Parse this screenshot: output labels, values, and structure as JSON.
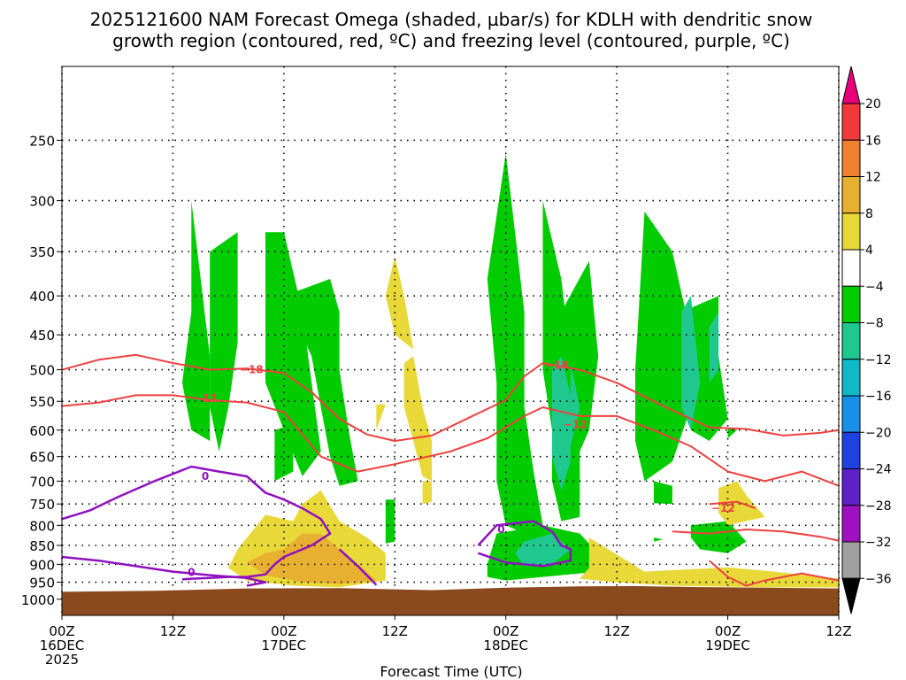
{
  "chart_data": {
    "type": "time-height-cross-section",
    "title_lines": [
      "2025121600 NAM Forecast Omega (shaded, µbar/s) for KDLH with dendritic snow",
      "growth region (contoured, red, ºC) and freezing level (contoured, purple, ºC)"
    ],
    "xlabel": "Forecast Time (UTC)",
    "x_ticks": [
      {
        "hour": 0,
        "lines": [
          "00Z",
          "16DEC",
          "2025"
        ]
      },
      {
        "hour": 12,
        "lines": [
          "12Z"
        ]
      },
      {
        "hour": 24,
        "lines": [
          "00Z",
          "17DEC"
        ]
      },
      {
        "hour": 36,
        "lines": [
          "12Z"
        ]
      },
      {
        "hour": 48,
        "lines": [
          "00Z",
          "18DEC"
        ]
      },
      {
        "hour": 60,
        "lines": [
          "12Z"
        ]
      },
      {
        "hour": 72,
        "lines": [
          "00Z",
          "19DEC"
        ]
      },
      {
        "hour": 84,
        "lines": [
          "12Z"
        ]
      }
    ],
    "x_range_hours": [
      0,
      84
    ],
    "y_axis": "pressure (hPa), log scale",
    "y_range_hpa": [
      1050,
      200
    ],
    "y_ticks": [
      250,
      300,
      350,
      400,
      450,
      500,
      550,
      600,
      650,
      700,
      750,
      800,
      850,
      900,
      950,
      1000
    ],
    "terrain_color": "#8b4a1e",
    "colorbar": {
      "labels": [
        "20",
        "16",
        "12",
        "8",
        "4",
        "−4",
        "−8",
        "−12",
        "−16",
        "−20",
        "−24",
        "−28",
        "−32",
        "−36"
      ],
      "colors": [
        "#e8007a",
        "#f03a3a",
        "#f08030",
        "#e8b030",
        "#e8d838",
        "#ffffff",
        "#00cc00",
        "#20c890",
        "#10b8c8",
        "#1890e8",
        "#2040e0",
        "#6020c8",
        "#a010c0",
        "#a0a0a0",
        "#000000"
      ]
    },
    "contour_labels": {
      "dgz_upper": "−18",
      "dgz_lower": "−12",
      "freezing": "0"
    },
    "dgz_upper_m18": [
      [
        0,
        500
      ],
      [
        4,
        485
      ],
      [
        8,
        478
      ],
      [
        12,
        490
      ],
      [
        16,
        500
      ],
      [
        20,
        498
      ],
      [
        24,
        505
      ],
      [
        27,
        535
      ],
      [
        30,
        580
      ],
      [
        33,
        608
      ],
      [
        36,
        620
      ],
      [
        40,
        610
      ],
      [
        44,
        578
      ],
      [
        48,
        548
      ],
      [
        50,
        510
      ],
      [
        52,
        490
      ],
      [
        56,
        500
      ],
      [
        60,
        520
      ],
      [
        64,
        550
      ],
      [
        66,
        565
      ],
      [
        70,
        595
      ],
      [
        74,
        598
      ],
      [
        78,
        610
      ],
      [
        82,
        605
      ],
      [
        84,
        600
      ]
    ],
    "dgz_lower_m12": [
      [
        0,
        558
      ],
      [
        4,
        552
      ],
      [
        8,
        540
      ],
      [
        12,
        540
      ],
      [
        16,
        548
      ],
      [
        20,
        552
      ],
      [
        24,
        568
      ],
      [
        28,
        650
      ],
      [
        32,
        680
      ],
      [
        36,
        665
      ],
      [
        42,
        640
      ],
      [
        46,
        615
      ],
      [
        48,
        595
      ],
      [
        50,
        575
      ],
      [
        52,
        560
      ],
      [
        56,
        575
      ],
      [
        60,
        575
      ],
      [
        64,
        600
      ],
      [
        68,
        630
      ],
      [
        72,
        680
      ],
      [
        76,
        700
      ],
      [
        80,
        680
      ],
      [
        84,
        710
      ]
    ],
    "dgz_lower_segments": [
      [
        [
          70,
          750
        ],
        [
          73,
          745
        ],
        [
          75,
          760
        ]
      ],
      [
        [
          66,
          815
        ],
        [
          70,
          820
        ],
        [
          74,
          810
        ],
        [
          78,
          815
        ],
        [
          82,
          828
        ],
        [
          84,
          838
        ]
      ],
      [
        [
          70,
          890
        ],
        [
          72,
          935
        ],
        [
          74,
          960
        ],
        [
          76,
          945
        ],
        [
          80,
          925
        ],
        [
          84,
          945
        ]
      ]
    ],
    "freezing_level_0": [
      [
        0,
        785
      ],
      [
        3,
        765
      ],
      [
        6,
        735
      ],
      [
        10,
        700
      ],
      [
        14,
        670
      ],
      [
        17,
        680
      ],
      [
        20,
        690
      ],
      [
        22,
        725
      ],
      [
        24,
        740
      ],
      [
        26,
        760
      ],
      [
        28,
        785
      ],
      [
        29,
        820
      ],
      [
        27,
        850
      ],
      [
        25,
        870
      ],
      [
        24,
        880
      ],
      [
        23,
        900
      ],
      [
        22,
        928
      ],
      [
        20,
        935
      ],
      [
        18,
        935
      ],
      [
        16,
        938
      ],
      [
        14,
        940
      ],
      [
        13,
        942
      ]
    ],
    "freezing_level_low": [
      [
        0,
        880
      ],
      [
        4,
        890
      ],
      [
        8,
        905
      ],
      [
        12,
        920
      ],
      [
        16,
        930
      ],
      [
        20,
        938
      ],
      [
        22,
        950
      ],
      [
        20,
        960
      ]
    ],
    "freezing_level_seg_b": [
      [
        30,
        860
      ],
      [
        32,
        905
      ],
      [
        34,
        958
      ]
    ],
    "freezing_level_seg_c": [
      [
        45,
        850
      ],
      [
        47,
        800
      ],
      [
        49,
        795
      ],
      [
        51,
        790
      ],
      [
        53,
        815
      ],
      [
        54,
        850
      ],
      [
        55,
        860
      ],
      [
        55,
        890
      ],
      [
        52,
        905
      ],
      [
        48,
        895
      ],
      [
        45,
        870
      ]
    ],
    "green_blobs": [
      [
        [
          14,
          300
        ],
        [
          15,
          380
        ],
        [
          16,
          480
        ],
        [
          16,
          620
        ],
        [
          14,
          600
        ],
        [
          13,
          520
        ],
        [
          14,
          420
        ]
      ],
      [
        [
          16,
          350
        ],
        [
          19,
          330
        ],
        [
          19,
          460
        ],
        [
          18,
          560
        ],
        [
          17,
          640
        ],
        [
          16,
          560
        ]
      ],
      [
        [
          22,
          330
        ],
        [
          24,
          330
        ],
        [
          26,
          420
        ],
        [
          27,
          520
        ],
        [
          28,
          640
        ],
        [
          26,
          690
        ],
        [
          24,
          600
        ],
        [
          22,
          520
        ],
        [
          22,
          420
        ]
      ],
      [
        [
          24,
          400
        ],
        [
          29,
          380
        ],
        [
          30,
          420
        ],
        [
          30,
          500
        ],
        [
          31,
          600
        ],
        [
          32,
          700
        ],
        [
          30,
          710
        ],
        [
          29,
          650
        ],
        [
          28,
          560
        ],
        [
          27,
          480
        ]
      ],
      [
        [
          23,
          600
        ],
        [
          25,
          590
        ],
        [
          25,
          680
        ],
        [
          23,
          700
        ]
      ],
      [
        [
          35,
          740
        ],
        [
          36,
          740
        ],
        [
          36,
          840
        ],
        [
          35,
          845
        ]
      ],
      [
        [
          46,
          380
        ],
        [
          48,
          260
        ],
        [
          50,
          420
        ],
        [
          50,
          560
        ],
        [
          51,
          680
        ],
        [
          52,
          800
        ],
        [
          50,
          820
        ],
        [
          48,
          800
        ],
        [
          47,
          700
        ],
        [
          47,
          600
        ],
        [
          47,
          520
        ]
      ],
      [
        [
          47,
          820
        ],
        [
          52,
          800
        ],
        [
          56,
          820
        ],
        [
          58,
          870
        ],
        [
          58,
          920
        ],
        [
          52,
          935
        ],
        [
          48,
          945
        ],
        [
          46,
          935
        ],
        [
          46,
          900
        ]
      ],
      [
        [
          52,
          300
        ],
        [
          54,
          380
        ],
        [
          55,
          480
        ],
        [
          56,
          620
        ],
        [
          56,
          780
        ],
        [
          54,
          790
        ],
        [
          53,
          700
        ],
        [
          53,
          600
        ],
        [
          52,
          500
        ]
      ],
      [
        [
          54,
          420
        ],
        [
          57,
          360
        ],
        [
          58,
          480
        ],
        [
          57,
          600
        ],
        [
          56,
          640
        ],
        [
          54,
          560
        ]
      ],
      [
        [
          63,
          310
        ],
        [
          66,
          350
        ],
        [
          68,
          450
        ],
        [
          68,
          560
        ],
        [
          66,
          660
        ],
        [
          63,
          700
        ],
        [
          62,
          620
        ],
        [
          62,
          500
        ]
      ],
      [
        [
          67,
          420
        ],
        [
          71,
          400
        ],
        [
          71,
          480
        ],
        [
          72,
          580
        ],
        [
          70,
          620
        ],
        [
          68,
          600
        ],
        [
          68,
          500
        ]
      ],
      [
        [
          64,
          700
        ],
        [
          66,
          710
        ],
        [
          66,
          750
        ],
        [
          64,
          748
        ]
      ],
      [
        [
          68,
          800
        ],
        [
          72,
          790
        ],
        [
          74,
          840
        ],
        [
          72,
          870
        ],
        [
          69,
          860
        ],
        [
          68,
          830
        ]
      ],
      [
        [
          72,
          595
        ],
        [
          73,
          600
        ],
        [
          72,
          615
        ]
      ],
      [
        [
          64,
          830
        ],
        [
          65,
          835
        ],
        [
          64,
          840
        ]
      ]
    ],
    "cyan_blobs": [
      [
        [
          53,
          500
        ],
        [
          54,
          480
        ],
        [
          55,
          540
        ],
        [
          55,
          660
        ],
        [
          54,
          720
        ],
        [
          53,
          650
        ]
      ],
      [
        [
          55,
          490
        ],
        [
          56,
          560
        ],
        [
          55,
          630
        ]
      ],
      [
        [
          50,
          840
        ],
        [
          53,
          820
        ],
        [
          55,
          860
        ],
        [
          53,
          900
        ],
        [
          50,
          905
        ],
        [
          49,
          870
        ]
      ],
      [
        [
          67,
          420
        ],
        [
          68,
          400
        ],
        [
          69,
          520
        ],
        [
          68,
          600
        ],
        [
          67,
          560
        ]
      ],
      [
        [
          70,
          440
        ],
        [
          71,
          420
        ],
        [
          71,
          500
        ],
        [
          70,
          520
        ]
      ]
    ],
    "yellow_blobs": [
      [
        [
          36,
          355
        ],
        [
          37,
          400
        ],
        [
          38,
          470
        ],
        [
          36,
          450
        ],
        [
          35,
          400
        ]
      ],
      [
        [
          37,
          490
        ],
        [
          38,
          480
        ],
        [
          39,
          560
        ],
        [
          40,
          620
        ],
        [
          40,
          700
        ],
        [
          39,
          690
        ],
        [
          38,
          620
        ],
        [
          37,
          560
        ]
      ],
      [
        [
          34,
          555
        ],
        [
          35,
          555
        ],
        [
          34,
          600
        ]
      ],
      [
        [
          19,
          860
        ],
        [
          22,
          775
        ],
        [
          25,
          790
        ],
        [
          26,
          750
        ],
        [
          28,
          720
        ],
        [
          30,
          790
        ],
        [
          33,
          830
        ],
        [
          35,
          870
        ],
        [
          35,
          945
        ],
        [
          30,
          965
        ],
        [
          25,
          960
        ],
        [
          20,
          945
        ],
        [
          18,
          910
        ]
      ],
      [
        [
          57,
          830
        ],
        [
          63,
          920
        ],
        [
          72,
          908
        ],
        [
          77,
          920
        ],
        [
          84,
          940
        ],
        [
          84,
          965
        ],
        [
          76,
          965
        ],
        [
          66,
          960
        ],
        [
          60,
          950
        ],
        [
          56,
          940
        ],
        [
          57,
          910
        ]
      ],
      [
        [
          71,
          715
        ],
        [
          73,
          700
        ],
        [
          74,
          730
        ],
        [
          76,
          780
        ],
        [
          72,
          800
        ],
        [
          71,
          770
        ]
      ],
      [
        [
          39,
          700
        ],
        [
          40,
          700
        ],
        [
          40,
          745
        ],
        [
          39,
          750
        ]
      ]
    ],
    "orange_blobs": [
      [
        [
          22,
          870
        ],
        [
          24,
          860
        ],
        [
          26,
          820
        ],
        [
          28,
          820
        ],
        [
          30,
          860
        ],
        [
          32,
          900
        ],
        [
          34,
          945
        ],
        [
          30,
          955
        ],
        [
          26,
          950
        ],
        [
          22,
          930
        ],
        [
          20,
          895
        ]
      ]
    ]
  }
}
